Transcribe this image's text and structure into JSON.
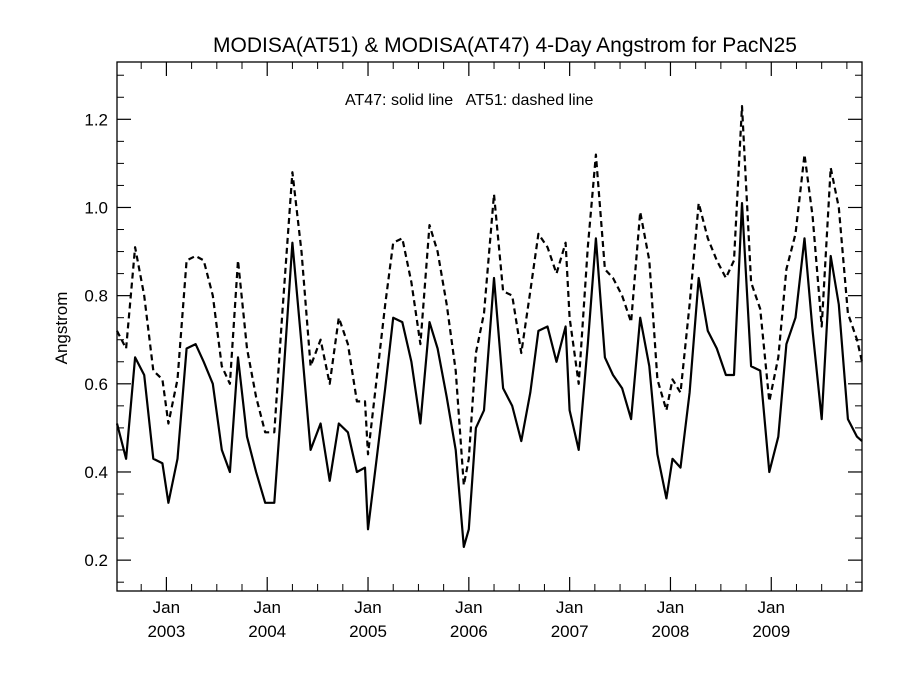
{
  "chart_data": {
    "type": "line",
    "title": "MODISA(AT51) & MODISA(AT47) 4-Day Angstrom for PacN25",
    "ylabel": "Angstrom",
    "xlabel": "",
    "annotation": "AT47: solid line   AT51: dashed line",
    "ylim": [
      0.13,
      1.33
    ],
    "xlim": [
      2002.51,
      2009.9
    ],
    "yticks": [
      0.2,
      0.4,
      0.6,
      0.8,
      1.0,
      1.2
    ],
    "ytick_labels": [
      "0.2",
      "0.4",
      "0.6",
      "0.8",
      "1.0",
      "1.2"
    ],
    "xticks": [
      {
        "x": 2003.0,
        "month": "Jan",
        "year": "2003"
      },
      {
        "x": 2004.0,
        "month": "Jan",
        "year": "2004"
      },
      {
        "x": 2005.0,
        "month": "Jan",
        "year": "2005"
      },
      {
        "x": 2006.0,
        "month": "Jan",
        "year": "2006"
      },
      {
        "x": 2007.0,
        "month": "Jan",
        "year": "2007"
      },
      {
        "x": 2008.0,
        "month": "Jan",
        "year": "2008"
      },
      {
        "x": 2009.0,
        "month": "Jan",
        "year": "2009"
      }
    ],
    "series": [
      {
        "name": "AT47",
        "style": "solid",
        "color": "#000000",
        "points": [
          [
            2002.51,
            0.51
          ],
          [
            2002.6,
            0.43
          ],
          [
            2002.69,
            0.66
          ],
          [
            2002.78,
            0.62
          ],
          [
            2002.87,
            0.43
          ],
          [
            2002.96,
            0.42
          ],
          [
            2003.02,
            0.33
          ],
          [
            2003.11,
            0.43
          ],
          [
            2003.2,
            0.68
          ],
          [
            2003.29,
            0.69
          ],
          [
            2003.37,
            0.65
          ],
          [
            2003.46,
            0.6
          ],
          [
            2003.55,
            0.45
          ],
          [
            2003.63,
            0.4
          ],
          [
            2003.71,
            0.66
          ],
          [
            2003.8,
            0.48
          ],
          [
            2003.89,
            0.4
          ],
          [
            2003.98,
            0.33
          ],
          [
            2004.07,
            0.33
          ],
          [
            2004.15,
            0.58
          ],
          [
            2004.25,
            0.92
          ],
          [
            2004.34,
            0.69
          ],
          [
            2004.43,
            0.45
          ],
          [
            2004.53,
            0.51
          ],
          [
            2004.62,
            0.38
          ],
          [
            2004.71,
            0.51
          ],
          [
            2004.8,
            0.49
          ],
          [
            2004.89,
            0.4
          ],
          [
            2004.97,
            0.41
          ],
          [
            2005.0,
            0.27
          ],
          [
            2005.08,
            0.42
          ],
          [
            2005.17,
            0.59
          ],
          [
            2005.25,
            0.75
          ],
          [
            2005.34,
            0.74
          ],
          [
            2005.43,
            0.65
          ],
          [
            2005.52,
            0.51
          ],
          [
            2005.61,
            0.74
          ],
          [
            2005.69,
            0.68
          ],
          [
            2005.78,
            0.57
          ],
          [
            2005.87,
            0.45
          ],
          [
            2005.95,
            0.23
          ],
          [
            2006.0,
            0.27
          ],
          [
            2006.07,
            0.5
          ],
          [
            2006.15,
            0.54
          ],
          [
            2006.25,
            0.84
          ],
          [
            2006.34,
            0.59
          ],
          [
            2006.43,
            0.55
          ],
          [
            2006.52,
            0.47
          ],
          [
            2006.61,
            0.58
          ],
          [
            2006.69,
            0.72
          ],
          [
            2006.78,
            0.73
          ],
          [
            2006.87,
            0.65
          ],
          [
            2006.96,
            0.73
          ],
          [
            2007.0,
            0.54
          ],
          [
            2007.09,
            0.45
          ],
          [
            2007.18,
            0.69
          ],
          [
            2007.26,
            0.93
          ],
          [
            2007.35,
            0.66
          ],
          [
            2007.43,
            0.62
          ],
          [
            2007.52,
            0.59
          ],
          [
            2007.61,
            0.52
          ],
          [
            2007.7,
            0.75
          ],
          [
            2007.79,
            0.64
          ],
          [
            2007.87,
            0.44
          ],
          [
            2007.96,
            0.34
          ],
          [
            2008.02,
            0.43
          ],
          [
            2008.1,
            0.41
          ],
          [
            2008.19,
            0.58
          ],
          [
            2008.28,
            0.84
          ],
          [
            2008.37,
            0.72
          ],
          [
            2008.46,
            0.68
          ],
          [
            2008.55,
            0.62
          ],
          [
            2008.63,
            0.62
          ],
          [
            2008.71,
            1.01
          ],
          [
            2008.8,
            0.64
          ],
          [
            2008.89,
            0.63
          ],
          [
            2008.98,
            0.4
          ],
          [
            2009.07,
            0.48
          ],
          [
            2009.15,
            0.69
          ],
          [
            2009.24,
            0.75
          ],
          [
            2009.33,
            0.93
          ],
          [
            2009.41,
            0.72
          ],
          [
            2009.5,
            0.52
          ],
          [
            2009.59,
            0.89
          ],
          [
            2009.67,
            0.78
          ],
          [
            2009.76,
            0.52
          ],
          [
            2009.85,
            0.48
          ],
          [
            2009.9,
            0.47
          ]
        ]
      },
      {
        "name": "AT51",
        "style": "dashed",
        "color": "#000000",
        "points": [
          [
            2002.51,
            0.72
          ],
          [
            2002.6,
            0.68
          ],
          [
            2002.69,
            0.91
          ],
          [
            2002.78,
            0.8
          ],
          [
            2002.87,
            0.63
          ],
          [
            2002.96,
            0.61
          ],
          [
            2003.02,
            0.51
          ],
          [
            2003.11,
            0.61
          ],
          [
            2003.2,
            0.88
          ],
          [
            2003.29,
            0.89
          ],
          [
            2003.37,
            0.88
          ],
          [
            2003.46,
            0.8
          ],
          [
            2003.55,
            0.64
          ],
          [
            2003.63,
            0.6
          ],
          [
            2003.71,
            0.88
          ],
          [
            2003.8,
            0.68
          ],
          [
            2003.89,
            0.57
          ],
          [
            2003.98,
            0.49
          ],
          [
            2004.07,
            0.49
          ],
          [
            2004.15,
            0.76
          ],
          [
            2004.25,
            1.08
          ],
          [
            2004.34,
            0.9
          ],
          [
            2004.43,
            0.64
          ],
          [
            2004.53,
            0.7
          ],
          [
            2004.62,
            0.6
          ],
          [
            2004.71,
            0.75
          ],
          [
            2004.8,
            0.69
          ],
          [
            2004.89,
            0.56
          ],
          [
            2004.97,
            0.56
          ],
          [
            2005.0,
            0.44
          ],
          [
            2005.08,
            0.6
          ],
          [
            2005.17,
            0.78
          ],
          [
            2005.25,
            0.92
          ],
          [
            2005.34,
            0.93
          ],
          [
            2005.43,
            0.83
          ],
          [
            2005.52,
            0.69
          ],
          [
            2005.61,
            0.96
          ],
          [
            2005.69,
            0.9
          ],
          [
            2005.78,
            0.78
          ],
          [
            2005.87,
            0.63
          ],
          [
            2005.95,
            0.37
          ],
          [
            2006.0,
            0.43
          ],
          [
            2006.07,
            0.67
          ],
          [
            2006.15,
            0.76
          ],
          [
            2006.25,
            1.03
          ],
          [
            2006.34,
            0.81
          ],
          [
            2006.43,
            0.8
          ],
          [
            2006.52,
            0.67
          ],
          [
            2006.61,
            0.81
          ],
          [
            2006.69,
            0.94
          ],
          [
            2006.78,
            0.91
          ],
          [
            2006.87,
            0.85
          ],
          [
            2006.96,
            0.92
          ],
          [
            2007.0,
            0.75
          ],
          [
            2007.09,
            0.6
          ],
          [
            2007.18,
            0.91
          ],
          [
            2007.26,
            1.12
          ],
          [
            2007.35,
            0.86
          ],
          [
            2007.43,
            0.84
          ],
          [
            2007.52,
            0.8
          ],
          [
            2007.61,
            0.74
          ],
          [
            2007.7,
            0.99
          ],
          [
            2007.79,
            0.88
          ],
          [
            2007.87,
            0.61
          ],
          [
            2007.96,
            0.54
          ],
          [
            2008.02,
            0.61
          ],
          [
            2008.1,
            0.58
          ],
          [
            2008.19,
            0.78
          ],
          [
            2008.28,
            1.01
          ],
          [
            2008.37,
            0.93
          ],
          [
            2008.46,
            0.88
          ],
          [
            2008.55,
            0.84
          ],
          [
            2008.63,
            0.88
          ],
          [
            2008.71,
            1.23
          ],
          [
            2008.8,
            0.83
          ],
          [
            2008.89,
            0.77
          ],
          [
            2008.98,
            0.56
          ],
          [
            2009.07,
            0.66
          ],
          [
            2009.15,
            0.86
          ],
          [
            2009.24,
            0.94
          ],
          [
            2009.33,
            1.12
          ],
          [
            2009.41,
            0.98
          ],
          [
            2009.5,
            0.73
          ],
          [
            2009.59,
            1.09
          ],
          [
            2009.67,
            1.0
          ],
          [
            2009.76,
            0.76
          ],
          [
            2009.85,
            0.7
          ],
          [
            2009.9,
            0.65
          ]
        ]
      }
    ]
  }
}
